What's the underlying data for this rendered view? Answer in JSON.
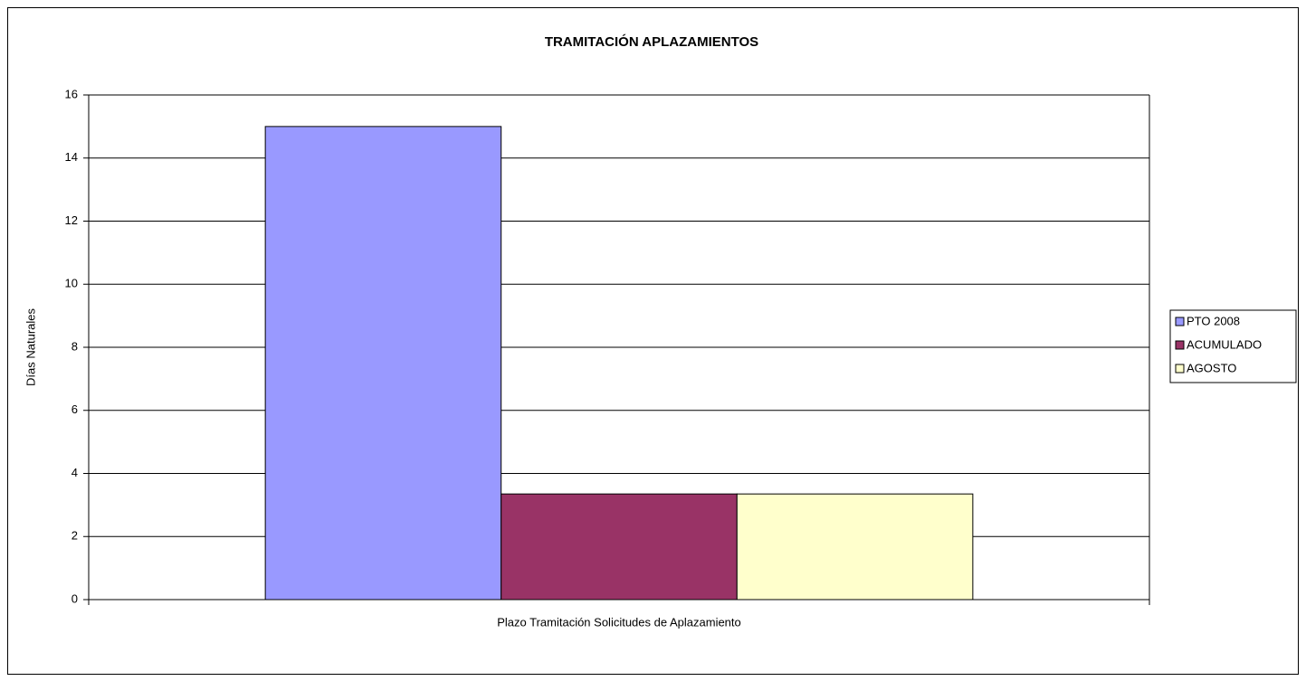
{
  "chart_data": {
    "type": "bar",
    "title": "TRAMITACIÓN APLAZAMIENTOS",
    "y_label": "Días Naturales",
    "categories": [
      "Plazo Tramitación Solicitudes de Aplazamiento"
    ],
    "series": [
      {
        "name": "PTO 2008",
        "color": "#9999ff",
        "values": [
          15
        ]
      },
      {
        "name": "ACUMULADO",
        "color": "#993366",
        "values": [
          3.35
        ]
      },
      {
        "name": "AGOSTO",
        "color": "#ffffcc",
        "values": [
          3.35
        ]
      }
    ],
    "ylim": [
      0,
      16
    ],
    "yticks": [
      0,
      2,
      4,
      6,
      8,
      10,
      12,
      14,
      16
    ],
    "grid": true,
    "legend": "right"
  }
}
